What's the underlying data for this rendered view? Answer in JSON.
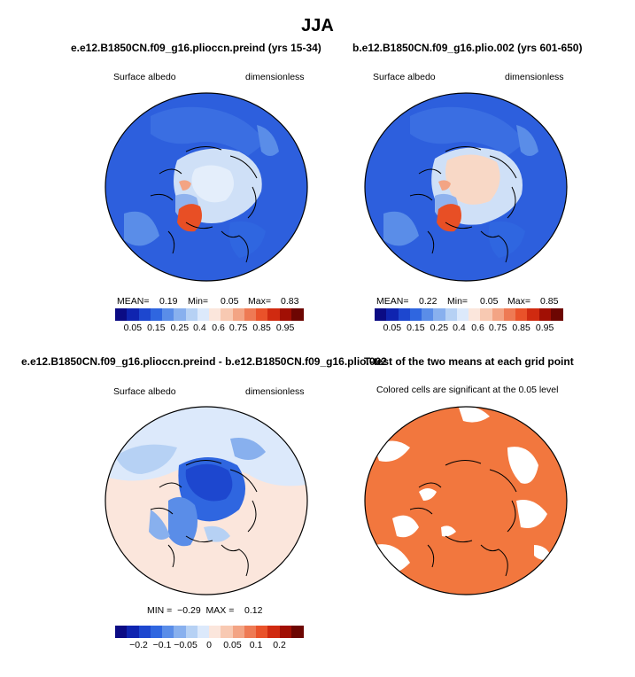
{
  "figure_title": "JJA",
  "chart_data": [
    {
      "type": "heatmap",
      "projection": "north polar stereographic",
      "title": "e.e12.B1850CN.f09_g16.plioccn.preind (yrs 15-34)",
      "left_label": "Surface albedo",
      "right_label": "dimensionless",
      "stats_labels": {
        "mean": "MEAN=",
        "min": "Min=",
        "max": "Max="
      },
      "mean": 0.19,
      "min": 0.05,
      "max": 0.83,
      "stats_display": {
        "mean": "0.19",
        "min": "0.05",
        "max": "0.83"
      },
      "colorbar_ticks": [
        "0.05",
        "0.15",
        "0.25",
        "0.4",
        "0.6",
        "0.75",
        "0.85",
        "0.95"
      ]
    },
    {
      "type": "heatmap",
      "projection": "north polar stereographic",
      "title": "b.e12.B1850CN.f09_g16.plio.002 (yrs 601-650)",
      "left_label": "Surface albedo",
      "right_label": "dimensionless",
      "stats_labels": {
        "mean": "MEAN=",
        "min": "Min=",
        "max": "Max="
      },
      "mean": 0.22,
      "min": 0.05,
      "max": 0.85,
      "stats_display": {
        "mean": "0.22",
        "min": "0.05",
        "max": "0.85"
      },
      "colorbar_ticks": [
        "0.05",
        "0.15",
        "0.25",
        "0.4",
        "0.6",
        "0.75",
        "0.85",
        "0.95"
      ]
    },
    {
      "type": "heatmap",
      "projection": "north polar stereographic",
      "title": "e.e12.B1850CN.f09_g16.plioccn.preind - b.e12.B1850CN.f09_g16.plio.002",
      "left_label": "Surface albedo",
      "right_label": "dimensionless",
      "min": -0.29,
      "max": 0.12,
      "stats_text": "MIN =  −0.29  MAX =    0.12",
      "colorbar_ticks": [
        "−0.2",
        "−0.1",
        "−0.05",
        "0",
        "0.05",
        "0.1",
        "0.2"
      ]
    },
    {
      "type": "heatmap",
      "projection": "north polar stereographic",
      "title": "T-test of the two means at each grid point",
      "left_label": "Colored cells are significant at the 0.05 level",
      "significance_level": 0.05
    }
  ],
  "colors": {
    "palette": [
      "#0b0b84",
      "#0f24b0",
      "#1d47cf",
      "#2f66e0",
      "#5a8de8",
      "#88b0ee",
      "#b6d1f4",
      "#dce9fb",
      "#fbe6dc",
      "#f8c9b2",
      "#f3a484",
      "#ee7a54",
      "#e9522a",
      "#d02a10",
      "#a10f04",
      "#6d0602"
    ],
    "sig_orange": "#f2773e",
    "ocean_low": "#2d5fdd",
    "ocean_mid": "#3a6ee2"
  }
}
